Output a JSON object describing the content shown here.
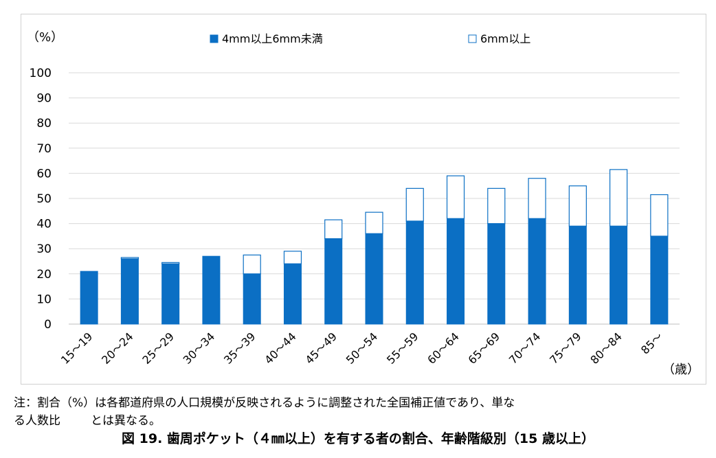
{
  "chart_data": {
    "type": "bar",
    "stacked": true,
    "categories": [
      "15～19",
      "20～24",
      "25～29",
      "30～34",
      "35～39",
      "40～44",
      "45～49",
      "50～54",
      "55～59",
      "60～64",
      "65～69",
      "70～74",
      "75～79",
      "80～84",
      "85～"
    ],
    "series": [
      {
        "name": "4mm以上6mm未満",
        "color": "#0b6fc4",
        "values": [
          21,
          26,
          24,
          27,
          20,
          24,
          34,
          36,
          41,
          42,
          40,
          42,
          39,
          39,
          35
        ]
      },
      {
        "name": "6mm以上",
        "color": "#ffffff",
        "values": [
          0,
          0.5,
          0.5,
          0,
          7.5,
          5,
          7.5,
          8.5,
          13,
          17,
          14,
          16,
          16,
          22.5,
          16.5
        ]
      }
    ],
    "ylim": [
      0,
      100
    ],
    "yticks": [
      "0",
      "10",
      "20",
      "30",
      "40",
      "50",
      "60",
      "70",
      "80",
      "90",
      "100"
    ],
    "ylabel": "（%）",
    "xlabel": "（歳）",
    "grid": true,
    "legend_position": "top"
  },
  "note": {
    "line1": "注：割合（%）は各都道府県の人口規模が反映されるように調整された全国補正値であり、単な",
    "line2_a": "る人数比",
    "line2_b": "とは異なる。"
  },
  "caption": "図 19. 歯周ポケット（４㎜以上）を有する者の割合、年齢階級別（15 歳以上）",
  "colors": {
    "bar_fill": "#0b6fc4",
    "bar_stroke": "#0b6fc4",
    "grid": "#d9d9d9",
    "axis": "#bfbfbf"
  }
}
